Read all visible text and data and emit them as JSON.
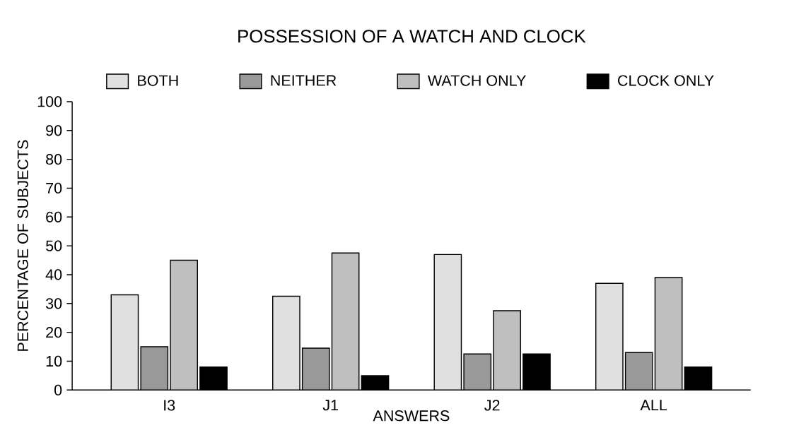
{
  "chart_data": {
    "type": "bar",
    "title": "POSSESSION OF A WATCH AND CLOCK",
    "xlabel": "ANSWERS",
    "ylabel": "PERCENTAGE OF SUBJECTS",
    "categories": [
      "I3",
      "J1",
      "J2",
      "ALL"
    ],
    "series": [
      {
        "name": "BOTH",
        "color": "#e0e0e0",
        "values": [
          33,
          32.5,
          47,
          37
        ]
      },
      {
        "name": "NEITHER",
        "color": "#999999",
        "values": [
          15,
          14.5,
          12.5,
          13
        ]
      },
      {
        "name": "WATCH ONLY",
        "color": "#bfbfbf",
        "values": [
          45,
          47.5,
          27.5,
          39
        ]
      },
      {
        "name": "CLOCK ONLY",
        "color": "#000000",
        "values": [
          8,
          5,
          12.5,
          8
        ]
      }
    ],
    "ylim": [
      0,
      100
    ],
    "yticks": [
      0,
      10,
      20,
      30,
      40,
      50,
      60,
      70,
      80,
      90,
      100
    ],
    "grid": false,
    "legend": "top"
  }
}
